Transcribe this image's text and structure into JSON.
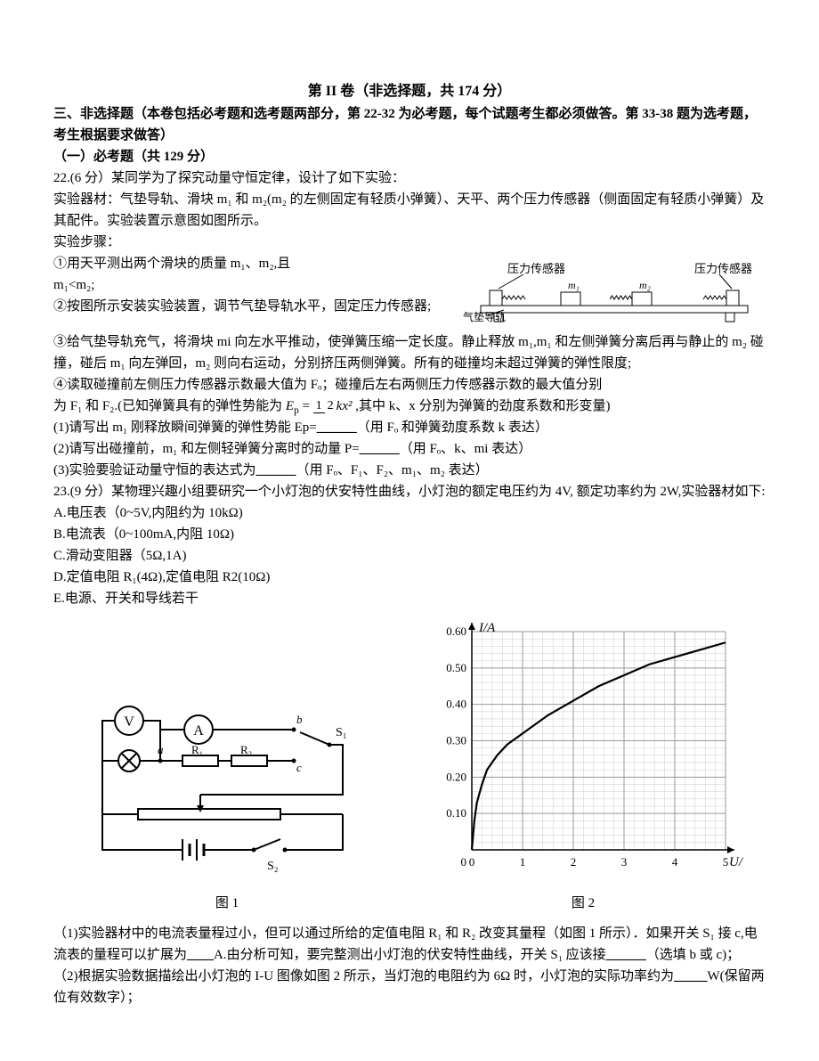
{
  "header": {
    "title": "第 II 卷（非选择题，共 174 分）",
    "instr1": "三、非选择题（本卷包括必考题和选考题两部分，第 22-32 为必考题，每个试题考生都必须做答。第 33-38 题为选考题，考生根据要求做答）",
    "sec1": "（一）必考题（共 129 分）"
  },
  "q22": {
    "head": "22.(6 分）某同学为了探究动量守恒定律，设计了如下实验：",
    "materials": "实验器材：气垫导轨、滑块 m₁ 和 m₂(m₂ 的左侧固定有轻质小弹簧）、天平、两个压力传感器（侧面固定有轻质小弹簧）及其配件。实验装置示意图如图所示。",
    "steps_label": "实验步骤：",
    "s1a": "①用天平测出两个滑块的质量 m₁、m₂,且",
    "s1b": "m₁<m₂;",
    "s2": "②按图所示安装实验装置，调节气垫导轨水平，固定压力传感器;",
    "s3": "③给气垫导轨充气，将滑块 mi 向左水平推动，使弹簧压缩一定长度。静止释放 m₁,m₁ 和左侧弹簧分离后再与静止的 m₂ 碰撞，碰后 m₁ 向左弹回，m₂ 则向右运动，分别挤压两侧弹簧。所有的碰撞均未超过弹簧的弹性限度;",
    "s4a": "④读取碰撞前左侧压力传感器示数最大值为 Fₒ；碰撞后左右两侧压力传感器示数的最大值分别",
    "s4b_pre": "为 F₁ 和 F₂.(已知弹簧具有的弹性势能为",
    "s4b_post": " ,其中 k、x 分别为弹簧的劲度系数和形变量)",
    "ep_label": "E",
    "ep_sub": "p",
    "ep_eq": " = ",
    "ep_num": "1",
    "ep_den": "2",
    "ep_tail": "kx²",
    "q1a": "(1)请写出 m₁ 刚释放瞬间弹簧的弹性势能 Ep=",
    "q1b": "______",
    "q1c": "（用 Fₒ 和弹簧劲度系数 k 表达）",
    "q2a": "(2)请写出碰撞前，m₁ 和左侧轻弹簧分离时的动量 P=",
    "q2b": "______",
    "q2c": "（用 Fₒ、k、mi 表达）",
    "q3a": "(3)实验要验证动量守恒的表达式为",
    "q3b": "______",
    "q3c": "（用 Fₒ、F₁、F₂、m₁、m₂ 表达）"
  },
  "q23": {
    "head": "23.(9 分）某物理兴趣小组要研究一个小灯泡的伏安特性曲线，小灯泡的额定电压约为 4V, 额定功率约为 2W,实验器材如下:",
    "A": "A.电压表（0~5V,内阻约为 10kΩ)",
    "B": "B.电流表（0~100mA,内阻 10Ω)",
    "C": "C.滑动变阻器（5Ω,1A)",
    "D": "D.定值电阻 R₁(4Ω),定值电阻 R2(10Ω)",
    "E": "E.电源、开关和导线若干",
    "fig1": "图 1",
    "fig2": "图 2",
    "p1a": "（1)实验器材中的电流表量程过小，但可以通过所给的定值电阻 R₁ 和 R₂ 改变其量程（如图 1 所示）．如果开关 S₁ 接 c,电流表的量程可以扩展为",
    "p1b": "____",
    "p1c": "A.由分析可知，要完整测出小灯泡的伏安特性曲线，开关 S₁ 应该接",
    "p1d": "______",
    "p1e": "（选填 b 或 c)；",
    "p2a": "（2)根据实验数据描绘出小灯泡的 I-U 图像如图 2 所示，当灯泡的电阻约为 6Ω 时，小灯泡的实际功率约为",
    "p2b": "_____",
    "p2c": "W(保留两位有效数字）；"
  },
  "airtrack": {
    "leftLabel": "压力传感器",
    "rightLabel": "压力传感器",
    "trackLabel": "气垫导轨",
    "m1": "m₁",
    "m2": "m₂",
    "baseColor": "#000",
    "fillColor": "none"
  },
  "circuit": {
    "labels": {
      "V": "V",
      "A": "A",
      "a": "a",
      "b": "b",
      "c": "c",
      "R1": "R₁",
      "R2": "R₂",
      "S1": "S₁",
      "S2": "S₂"
    },
    "stroke": "#000",
    "strokeWidth": 2
  },
  "chart": {
    "type": "line",
    "xlabel": "U/V",
    "ylabel": "I/A",
    "xlim": [
      0,
      5
    ],
    "ylim": [
      0,
      0.6
    ],
    "xticks": [
      0,
      1,
      2,
      3,
      4,
      5
    ],
    "yticks": [
      0,
      0.1,
      0.2,
      0.3,
      0.4,
      0.5,
      0.6
    ],
    "grid_major": 1,
    "grid_minor": 0.2,
    "grid_color": "#999",
    "minor_color": "#ccc",
    "axis_color": "#000",
    "bg": "#fff",
    "curve_color": "#000",
    "curve_width": 2.2,
    "tick_fontsize": 13,
    "label_fontsize": 15,
    "points": [
      [
        0.0,
        0.0
      ],
      [
        0.05,
        0.08
      ],
      [
        0.1,
        0.13
      ],
      [
        0.2,
        0.18
      ],
      [
        0.3,
        0.22
      ],
      [
        0.5,
        0.26
      ],
      [
        0.7,
        0.29
      ],
      [
        1.0,
        0.32
      ],
      [
        1.5,
        0.37
      ],
      [
        2.0,
        0.41
      ],
      [
        2.5,
        0.45
      ],
      [
        3.0,
        0.48
      ],
      [
        3.5,
        0.51
      ],
      [
        4.0,
        0.53
      ],
      [
        4.5,
        0.55
      ],
      [
        5.0,
        0.57
      ]
    ]
  }
}
